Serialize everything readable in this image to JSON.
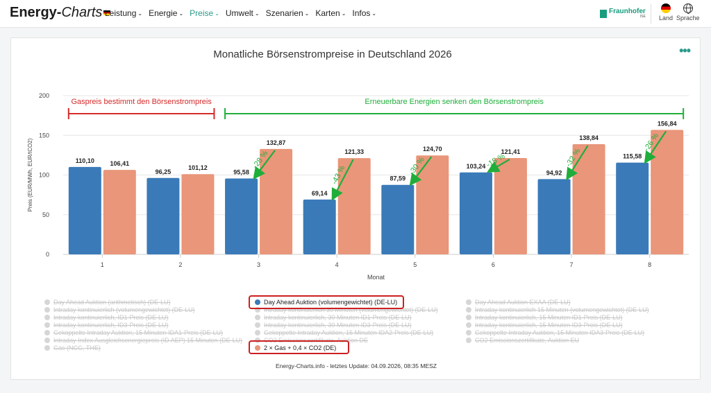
{
  "header": {
    "logo_main": "Energy-",
    "logo_suffix": "Charts",
    "nav": [
      {
        "label": "Leistung",
        "active": false
      },
      {
        "label": "Energie",
        "active": false
      },
      {
        "label": "Preise",
        "active": true
      },
      {
        "label": "Umwelt",
        "active": false
      },
      {
        "label": "Szenarien",
        "active": false
      },
      {
        "label": "Karten",
        "active": false
      },
      {
        "label": "Infos",
        "active": false
      }
    ],
    "fraunhofer": "Fraunhofer",
    "fraunhofer_sub": "ISE",
    "land_label": "Land",
    "sprache_label": "Sprache"
  },
  "chart_data": {
    "type": "bar",
    "title": "Monatliche Börsenstrompreise in Deutschland 2026",
    "xlabel": "Monat",
    "ylabel": "Preis (EUR/MWh, EUR/tCO2)",
    "ylim": [
      0,
      200
    ],
    "yticks": [
      0,
      50,
      100,
      150,
      200
    ],
    "categories": [
      "1",
      "2",
      "3",
      "4",
      "5",
      "6",
      "7",
      "8"
    ],
    "series": [
      {
        "name": "Day Ahead Auktion (volumengewichtet) (DE-LU)",
        "color": "#3a7ab8",
        "values": [
          110.1,
          96.25,
          95.58,
          69.14,
          87.59,
          103.24,
          94.92,
          115.58
        ],
        "labels": [
          "110,10",
          "96,25",
          "95,58",
          "69,14",
          "87,59",
          "103,24",
          "94,92",
          "115,58"
        ]
      },
      {
        "name": "2 × Gas + 0,4 × CO2 (DE)",
        "color": "#e9967a",
        "values": [
          106.41,
          101.12,
          132.87,
          121.33,
          124.7,
          121.41,
          138.84,
          156.84
        ],
        "labels": [
          "106,41",
          "101,12",
          "132,87",
          "121,33",
          "124,70",
          "121,41",
          "138,84",
          "156,84"
        ]
      }
    ],
    "annotations": {
      "bracket_left": {
        "text": "Gaspreis bestimmt den Börsenstrompreis",
        "color": "#d42a2a",
        "from_category": 1,
        "to_category": 2
      },
      "bracket_right": {
        "text": "Erneuerbare Energien senken den Börsenstrompreis",
        "color": "#1fae3a",
        "from_category": 3,
        "to_category": 8
      },
      "arrows": [
        {
          "category": "3",
          "label": "-28 %"
        },
        {
          "category": "4",
          "label": "-43 %"
        },
        {
          "category": "5",
          "label": "-30 %"
        },
        {
          "category": "6",
          "label": "-15 %"
        },
        {
          "category": "7",
          "label": "-32 %"
        },
        {
          "category": "8",
          "label": "-26 %"
        }
      ]
    },
    "grid": true,
    "legend_position": "bottom"
  },
  "legend": {
    "col1": [
      {
        "label": "Day Ahead Auktion (arithmetisch) (DE-LU)",
        "on": false
      },
      {
        "label": "Intraday kontinuierlich (volumengewichtet) (DE-LU)",
        "on": false
      },
      {
        "label": "Intraday kontinuierlich, ID1-Preis (DE-LU)",
        "on": false
      },
      {
        "label": "Intraday kontinuierlich, ID3-Preis (DE-LU)",
        "on": false
      },
      {
        "label": "Gekoppelte Intraday Auktion, 15 Minuten IDA1-Preis (DE-LU)",
        "on": false
      },
      {
        "label": "Intraday Index Ausgleichsenergiepreis (ID AEP) 15 Minuten (DE-LU)",
        "on": false
      },
      {
        "label": "Gas (NCG, THE)",
        "on": false
      }
    ],
    "col2": [
      {
        "label": "Day Ahead Auktion (volumengewichtet) (DE-LU)",
        "on": true,
        "color": "#3a7ab8"
      },
      {
        "label": "Intraday kontinuierlich 30 Minuten (volumengewichtet) (DE-LU)",
        "on": false
      },
      {
        "label": "Intraday kontinuierlich, 30 Minuten ID1-Preis (DE-LU)",
        "on": false
      },
      {
        "label": "Intraday kontinuierlich, 30 Minuten ID3-Preis (DE-LU)",
        "on": false
      },
      {
        "label": "Gekoppelte Intraday Auktion, 15 Minuten IDA2-Preis (DE-LU)",
        "on": false
      },
      {
        "label": "CO2 Emissionszertifikate, Auktion DE",
        "on": false
      },
      {
        "label": "2 × Gas + 0,4 × CO2 (DE)",
        "on": true,
        "color": "#e9967a"
      }
    ],
    "col3": [
      {
        "label": "Day Ahead Auktion EXAA (DE-LU)",
        "on": false
      },
      {
        "label": "Intraday kontinuierlich 15 Minuten (volumengewichtet) (DE-LU)",
        "on": false
      },
      {
        "label": "Intraday kontinuierlich, 15 Minuten ID1-Preis (DE-LU)",
        "on": false
      },
      {
        "label": "Intraday kontinuierlich, 15 Minuten ID3-Preis (DE-LU)",
        "on": false
      },
      {
        "label": "Gekoppelte Intraday Auktion, 15 Minuten IDA3-Preis (DE-LU)",
        "on": false
      },
      {
        "label": "CO2 Emissionszertifikate, Auktion EU",
        "on": false
      }
    ]
  },
  "footer": "Energy-Charts.info - letztes Update: 04.09.2026, 08:35 MESZ"
}
